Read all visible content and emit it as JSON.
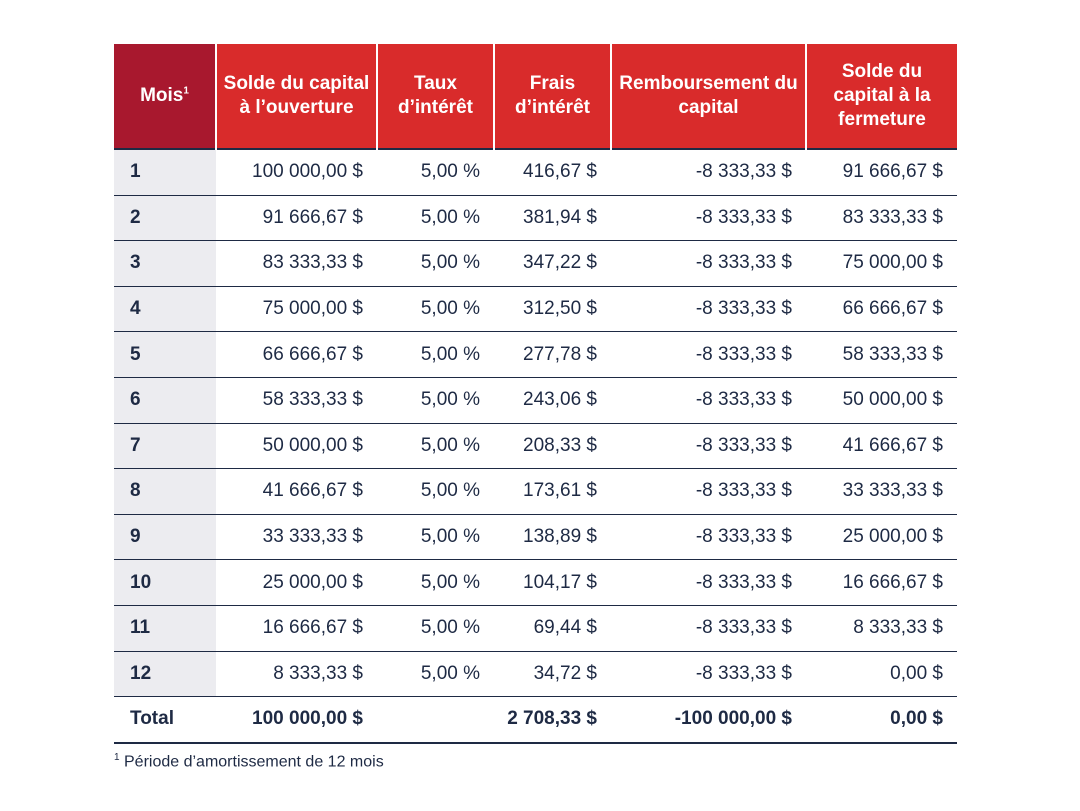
{
  "headers": {
    "mois": "Mois",
    "mois_sup": "1",
    "solde_ouverture": "Solde du capital à l’ouverture",
    "taux": "Taux d’intérêt",
    "frais": "Frais d’intérêt",
    "remboursement": "Remboursement du capital",
    "solde_fermeture": "Solde du capital à la fermeture"
  },
  "rows": [
    {
      "mois": "1",
      "ouverture": "100 000,00 $",
      "taux": "5,00 %",
      "frais": "416,67 $",
      "remb": "-8 333,33 $",
      "fermeture": "91 666,67 $"
    },
    {
      "mois": "2",
      "ouverture": "91 666,67 $",
      "taux": "5,00 %",
      "frais": "381,94 $",
      "remb": "-8 333,33 $",
      "fermeture": "83 333,33 $"
    },
    {
      "mois": "3",
      "ouverture": "83 333,33 $",
      "taux": "5,00 %",
      "frais": "347,22 $",
      "remb": "-8 333,33 $",
      "fermeture": "75 000,00 $"
    },
    {
      "mois": "4",
      "ouverture": "75 000,00 $",
      "taux": "5,00 %",
      "frais": "312,50 $",
      "remb": "-8 333,33 $",
      "fermeture": "66 666,67 $"
    },
    {
      "mois": "5",
      "ouverture": "66 666,67 $",
      "taux": "5,00 %",
      "frais": "277,78 $",
      "remb": "-8 333,33 $",
      "fermeture": "58 333,33 $"
    },
    {
      "mois": "6",
      "ouverture": "58 333,33 $",
      "taux": "5,00 %",
      "frais": "243,06 $",
      "remb": "-8 333,33 $",
      "fermeture": "50 000,00 $"
    },
    {
      "mois": "7",
      "ouverture": "50 000,00 $",
      "taux": "5,00 %",
      "frais": "208,33 $",
      "remb": "-8 333,33 $",
      "fermeture": "41 666,67 $"
    },
    {
      "mois": "8",
      "ouverture": "41 666,67 $",
      "taux": "5,00 %",
      "frais": "173,61 $",
      "remb": "-8 333,33 $",
      "fermeture": "33 333,33 $"
    },
    {
      "mois": "9",
      "ouverture": "33 333,33 $",
      "taux": "5,00 %",
      "frais": "138,89 $",
      "remb": "-8 333,33 $",
      "fermeture": "25 000,00 $"
    },
    {
      "mois": "10",
      "ouverture": "25 000,00 $",
      "taux": "5,00 %",
      "frais": "104,17 $",
      "remb": "-8 333,33 $",
      "fermeture": "16 666,67 $"
    },
    {
      "mois": "11",
      "ouverture": "16 666,67 $",
      "taux": "5,00 %",
      "frais": "69,44 $",
      "remb": "-8 333,33 $",
      "fermeture": "8 333,33 $"
    },
    {
      "mois": "12",
      "ouverture": "8 333,33 $",
      "taux": "5,00 %",
      "frais": "34,72 $",
      "remb": "-8 333,33 $",
      "fermeture": "0,00 $"
    }
  ],
  "total": {
    "label": "Total",
    "ouverture": "100 000,00 $",
    "taux": "",
    "frais": "2 708,33 $",
    "remb": "-100 000,00 $",
    "fermeture": "0,00 $"
  },
  "footnote": {
    "sup": "1",
    "text": " Période d’amortissement de 12 mois"
  },
  "colors": {
    "header_red": "#d92b2b",
    "header_dark_red": "#a8182e",
    "text_navy": "#1e2a44",
    "mois_column_bg": "#ececf0"
  }
}
